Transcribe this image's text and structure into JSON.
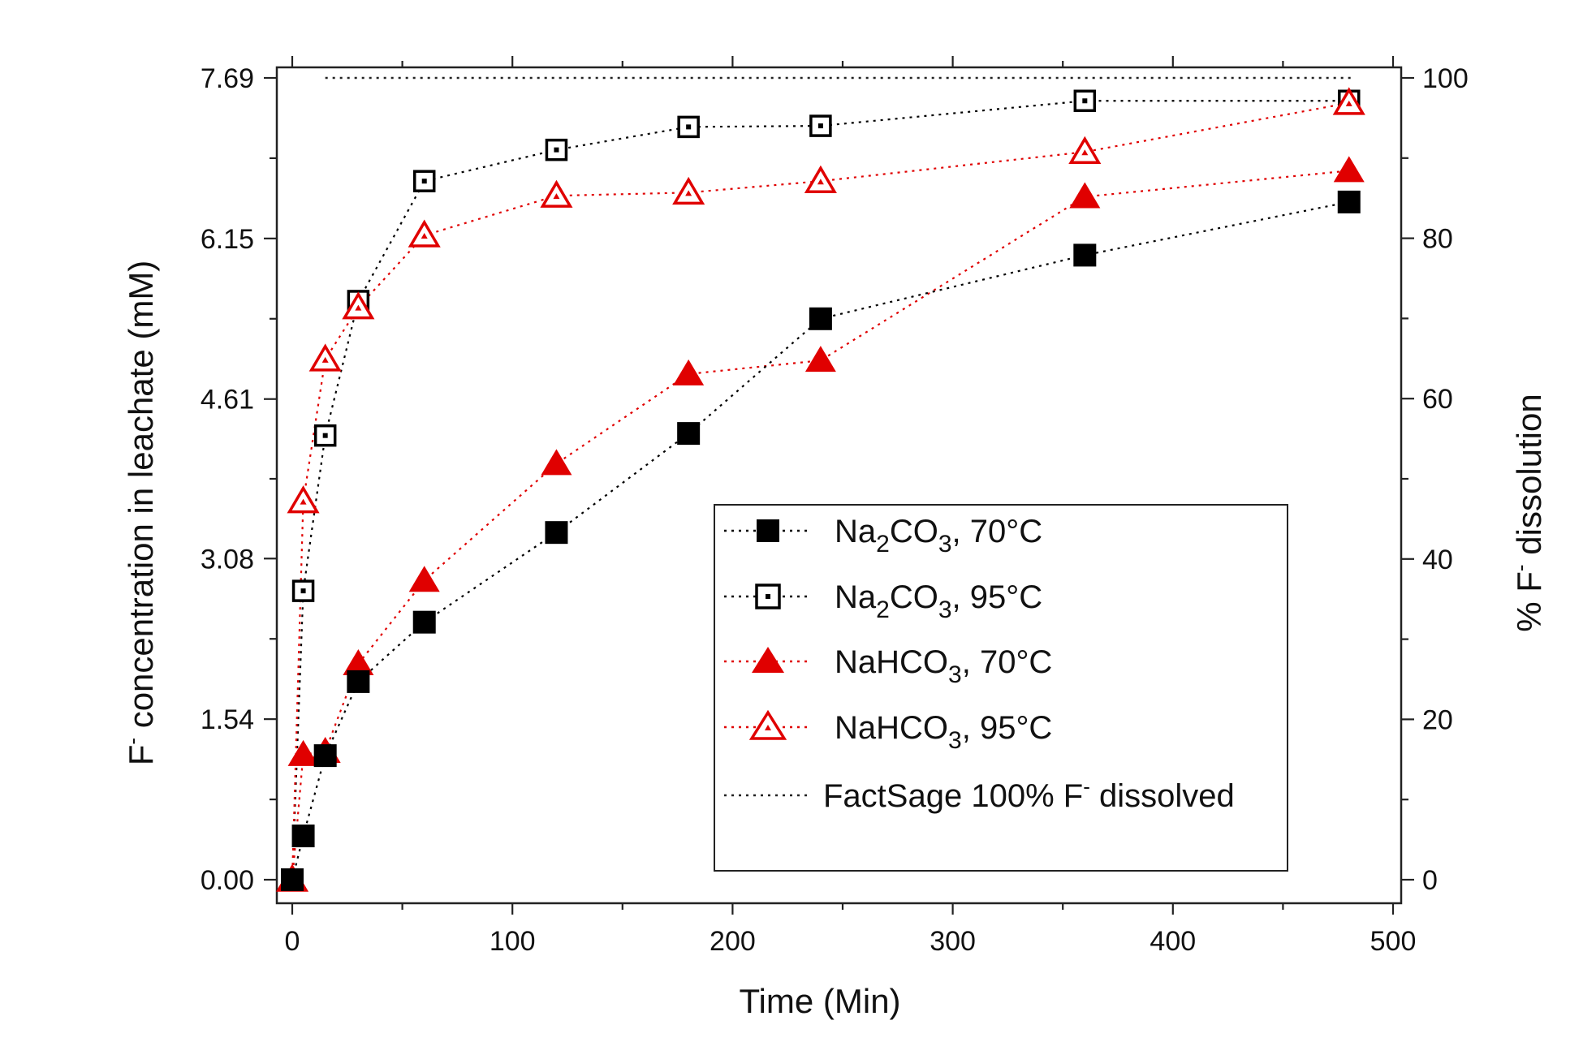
{
  "chart_data": {
    "type": "scatter",
    "xlabel": "Time (Min)",
    "ylabel": {
      "prefix": "F",
      "sup": "-",
      "rest": " concentration in leachate (mM)"
    },
    "y2label": {
      "prefix": "% F",
      "sup": "-",
      "rest": " dissolution"
    },
    "xlim": [
      -5,
      500
    ],
    "ylim": [
      -0.2,
      7.69
    ],
    "y2lim": [
      -2.6,
      100
    ],
    "xticks": [
      0,
      100,
      200,
      300,
      400,
      500
    ],
    "yticks": [
      "0.00",
      "1.54",
      "3.08",
      "4.61",
      "6.15",
      "7.69"
    ],
    "y2ticks": [
      0,
      20,
      40,
      60,
      80,
      100
    ],
    "reference_line": {
      "y": 7.69,
      "label": "FactSage 100% F- dissolved"
    },
    "series": [
      {
        "name": "Na2CO3, 70°C",
        "marker": "square-filled",
        "color": "#000000",
        "x": [
          0,
          5,
          15,
          30,
          60,
          120,
          180,
          240,
          360,
          480
        ],
        "y": [
          0.0,
          0.42,
          1.19,
          1.9,
          2.47,
          3.33,
          4.28,
          5.38,
          5.99,
          6.5
        ]
      },
      {
        "name": "Na2CO3, 95°C",
        "marker": "square-open",
        "color": "#000000",
        "x": [
          0,
          5,
          15,
          30,
          60,
          120,
          180,
          240,
          360,
          480
        ],
        "y": [
          0.0,
          2.77,
          4.26,
          5.55,
          6.7,
          7.0,
          7.22,
          7.23,
          7.47,
          7.47
        ]
      },
      {
        "name": "NaHCO3, 70°C",
        "marker": "triangle-filled",
        "color": "#e00000",
        "x": [
          0,
          5,
          15,
          30,
          60,
          120,
          180,
          240,
          360,
          480
        ],
        "y": [
          0.0,
          1.2,
          1.23,
          2.07,
          2.87,
          3.99,
          4.85,
          4.98,
          6.55,
          6.8
        ]
      },
      {
        "name": "NaHCO3, 95°C",
        "marker": "triangle-open",
        "color": "#e00000",
        "x": [
          0,
          5,
          15,
          30,
          60,
          120,
          180,
          240,
          360,
          480
        ],
        "y": [
          0.0,
          3.63,
          4.99,
          5.49,
          6.18,
          6.56,
          6.59,
          6.7,
          6.98,
          7.45
        ]
      }
    ],
    "legend": {
      "placement": "lower-right",
      "entries": [
        {
          "base": "Na",
          "sub1": "2",
          "mid": "CO",
          "sub2": "3",
          "suffix": ",  70°C"
        },
        {
          "base": "Na",
          "sub1": "2",
          "mid": "CO",
          "sub2": "3",
          "suffix": ",  95°C"
        },
        {
          "base": "NaHCO",
          "sub1": "",
          "mid": "",
          "sub2": "3",
          "suffix": ",  70°C"
        },
        {
          "base": "NaHCO",
          "sub1": "",
          "mid": "",
          "sub2": "3",
          "suffix": ",  95°C"
        },
        {
          "prefix": "FactSage 100% F",
          "sup": "-",
          "rest": " dissolved"
        }
      ]
    }
  }
}
